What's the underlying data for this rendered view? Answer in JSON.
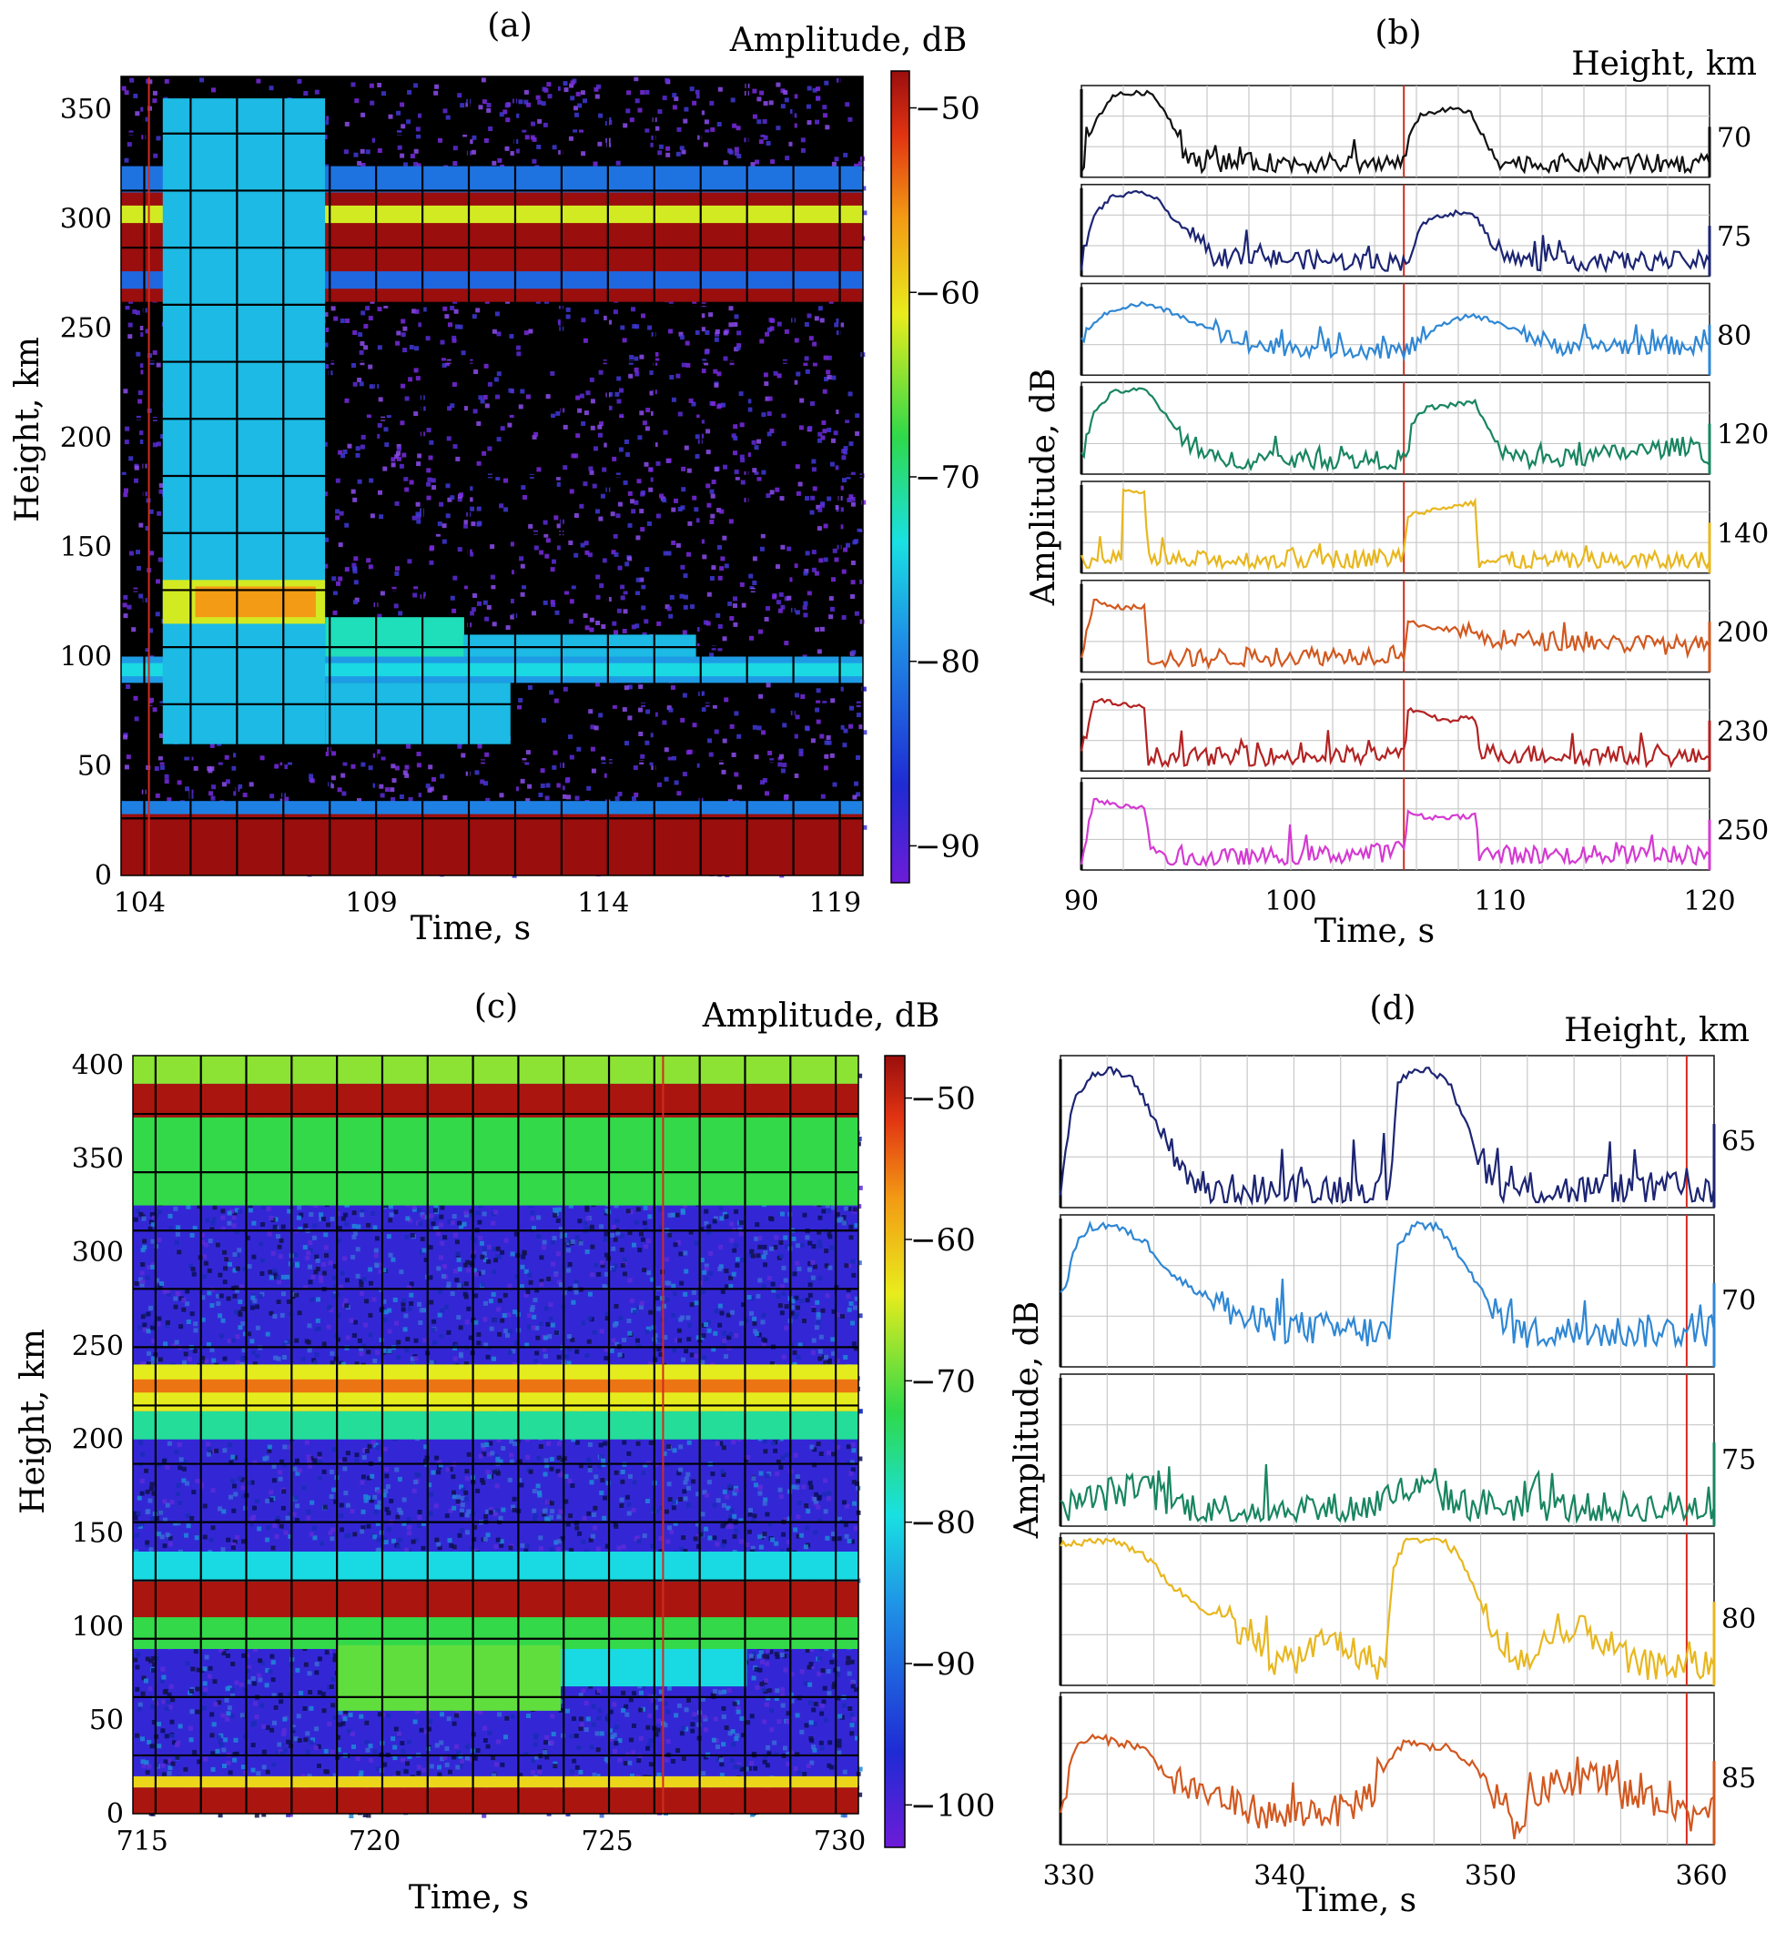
{
  "chart_data": [
    {
      "panel_label": "(a)",
      "type": "heatmap",
      "xlabel": "Time, s",
      "ylabel": "Height, km",
      "colorbar_label": "Amplitude, dB",
      "x_ticks": [
        104,
        109,
        114,
        119
      ],
      "y_ticks": [
        0,
        50,
        100,
        150,
        200,
        250,
        300,
        350
      ],
      "xlim": [
        103.6,
        119.6
      ],
      "ylim": [
        0,
        365
      ],
      "colorbar_ticks": [
        -50,
        -60,
        -70,
        -80,
        -90
      ],
      "colorbar_range": [
        -92,
        -48
      ],
      "background_db": -100,
      "bands": [
        {
          "x": [
            103.6,
            119.6
          ],
          "h": [
            0,
            30
          ],
          "db": -48
        },
        {
          "x": [
            103.6,
            119.6
          ],
          "h": [
            28,
            34
          ],
          "db": -80
        },
        {
          "x": [
            103.6,
            119.6
          ],
          "h": [
            88,
            100
          ],
          "db": -78
        },
        {
          "x": [
            103.6,
            119.6
          ],
          "h": [
            91,
            97
          ],
          "db": -74
        },
        {
          "x": [
            103.6,
            119.6
          ],
          "h": [
            262,
            322
          ],
          "db": -48
        },
        {
          "x": [
            103.6,
            119.6
          ],
          "h": [
            268,
            276
          ],
          "db": -82
        },
        {
          "x": [
            103.6,
            119.6
          ],
          "h": [
            298,
            306
          ],
          "db": -62
        },
        {
          "x": [
            103.6,
            119.6
          ],
          "h": [
            312,
            324
          ],
          "db": -81
        },
        {
          "x": [
            104.5,
            108.0
          ],
          "h": [
            60,
            355
          ],
          "db": -76
        },
        {
          "x": [
            104.5,
            108.0
          ],
          "h": [
            115,
            135
          ],
          "db": -62
        },
        {
          "x": [
            105.2,
            107.8
          ],
          "h": [
            118,
            132
          ],
          "db": -56
        },
        {
          "x": [
            108.0,
            111.0
          ],
          "h": [
            100,
            118
          ],
          "db": -72
        },
        {
          "x": [
            111.0,
            116.0
          ],
          "h": [
            100,
            110
          ],
          "db": -76
        },
        {
          "x": [
            108.0,
            112.0
          ],
          "h": [
            60,
            88
          ],
          "db": -76
        }
      ],
      "annotations": [
        {
          "type": "vline",
          "x": 104.2,
          "color": "#d32b1e"
        }
      ]
    },
    {
      "panel_label": "(b)",
      "type": "line",
      "xlabel": "Time, s",
      "ylabel": "Amplitude, dB",
      "series_label_title": "Height, km",
      "x_ticks": [
        90,
        100,
        110,
        120
      ],
      "xlim": [
        90,
        120
      ],
      "ylim": [
        0,
        1
      ],
      "marker_x": 105.4,
      "marker_color": "#d32b1e",
      "series": [
        {
          "name": "70",
          "color": "#111111",
          "x": [
            90,
            90.6,
            91.5,
            93,
            93.4,
            94,
            94.6,
            95.1,
            104.2,
            105.5,
            105.8,
            106.2,
            107,
            108,
            108.6,
            109.2,
            110,
            110.5,
            120
          ],
          "y": [
            0.05,
            0.6,
            0.95,
            0.98,
            0.95,
            0.75,
            0.45,
            0.12,
            0.1,
            0.1,
            0.55,
            0.7,
            0.75,
            0.78,
            0.72,
            0.4,
            0.15,
            0.1,
            0.1
          ]
        },
        {
          "name": "75",
          "color": "#1c2573",
          "x": [
            90,
            90.6,
            91.5,
            93,
            93.6,
            94.4,
            95.2,
            96.2,
            104.5,
            105.5,
            106.2,
            107,
            108,
            108.8,
            109.4,
            110.2,
            111,
            120
          ],
          "y": [
            0.1,
            0.7,
            0.92,
            0.97,
            0.88,
            0.65,
            0.45,
            0.18,
            0.1,
            0.12,
            0.55,
            0.68,
            0.72,
            0.68,
            0.45,
            0.18,
            0.12,
            0.12
          ]
        },
        {
          "name": "80",
          "color": "#2f87d4",
          "x": [
            90,
            90.6,
            91.6,
            93,
            94.2,
            95.4,
            96.8,
            98,
            104.8,
            105.4,
            106.2,
            107.2,
            108.6,
            110,
            111.4,
            112.6,
            120
          ],
          "y": [
            0.3,
            0.6,
            0.75,
            0.82,
            0.72,
            0.58,
            0.42,
            0.3,
            0.25,
            0.2,
            0.4,
            0.55,
            0.68,
            0.58,
            0.42,
            0.3,
            0.3
          ]
        },
        {
          "name": "120",
          "color": "#188560",
          "x": [
            90,
            90.6,
            91.5,
            93,
            93.5,
            94.3,
            95.2,
            96,
            104.5,
            105.5,
            105.9,
            106.5,
            108,
            108.8,
            109.4,
            110,
            111,
            113,
            116,
            119.5,
            120
          ],
          "y": [
            0.1,
            0.7,
            0.95,
            0.98,
            0.85,
            0.55,
            0.3,
            0.12,
            0.1,
            0.12,
            0.6,
            0.75,
            0.8,
            0.82,
            0.5,
            0.2,
            0.12,
            0.12,
            0.2,
            0.3,
            0.05
          ]
        },
        {
          "name": "140",
          "color": "#e8b71e",
          "x": [
            90,
            91.9,
            92,
            93,
            93.1,
            94,
            104.5,
            105.4,
            105.6,
            106.5,
            108.6,
            108.8,
            109,
            120
          ],
          "y": [
            0.08,
            0.08,
            0.95,
            0.95,
            0.1,
            0.08,
            0.12,
            0.15,
            0.65,
            0.7,
            0.8,
            0.8,
            0.08,
            0.08
          ]
        },
        {
          "name": "200",
          "color": "#d2581f",
          "x": [
            90,
            90.6,
            92,
            93,
            93.2,
            94,
            104.5,
            105.4,
            105.6,
            106.5,
            108.5,
            109,
            120
          ],
          "y": [
            0.1,
            0.82,
            0.72,
            0.75,
            0.12,
            0.1,
            0.15,
            0.2,
            0.55,
            0.5,
            0.42,
            0.35,
            0.25
          ]
        },
        {
          "name": "230",
          "color": "#b32222",
          "x": [
            90,
            90.6,
            92,
            93,
            93.2,
            94,
            104.5,
            105.4,
            105.6,
            106.5,
            107.5,
            108.5,
            108.8,
            109,
            120
          ],
          "y": [
            0.1,
            0.82,
            0.75,
            0.72,
            0.12,
            0.1,
            0.12,
            0.15,
            0.7,
            0.62,
            0.55,
            0.6,
            0.58,
            0.15,
            0.1
          ]
        },
        {
          "name": "250",
          "color": "#d43ad2",
          "x": [
            90,
            90.6,
            92,
            93,
            93.3,
            94,
            104.5,
            105.4,
            105.6,
            106.5,
            108.5,
            108.8,
            109,
            120
          ],
          "y": [
            0.1,
            0.8,
            0.72,
            0.72,
            0.12,
            0.05,
            0.15,
            0.2,
            0.65,
            0.58,
            0.6,
            0.62,
            0.12,
            0.12
          ]
        }
      ]
    },
    {
      "panel_label": "(c)",
      "type": "heatmap",
      "xlabel": "Time, s",
      "ylabel": "Height, km",
      "colorbar_label": "Amplitude, dB",
      "x_ticks": [
        715,
        720,
        725,
        730
      ],
      "y_ticks": [
        0,
        50,
        100,
        150,
        200,
        250,
        300,
        350,
        400
      ],
      "xlim": [
        714.8,
        730.4
      ],
      "ylim": [
        0,
        405
      ],
      "colorbar_ticks": [
        -50,
        -60,
        -70,
        -80,
        -90,
        -100
      ],
      "colorbar_range": [
        -103,
        -47
      ],
      "background_db": -98,
      "bands": [
        {
          "x": [
            714.8,
            730.4
          ],
          "h": [
            0,
            14
          ],
          "db": -48
        },
        {
          "x": [
            714.8,
            730.4
          ],
          "h": [
            14,
            20
          ],
          "db": -62
        },
        {
          "x": [
            714.8,
            730.4
          ],
          "h": [
            88,
            105
          ],
          "db": -72
        },
        {
          "x": [
            714.8,
            730.4
          ],
          "h": [
            105,
            124
          ],
          "db": -48
        },
        {
          "x": [
            714.8,
            730.4
          ],
          "h": [
            124,
            140
          ],
          "db": -80
        },
        {
          "x": [
            714.8,
            730.4
          ],
          "h": [
            200,
            215
          ],
          "db": -76
        },
        {
          "x": [
            714.8,
            730.4
          ],
          "h": [
            215,
            240
          ],
          "db": -64
        },
        {
          "x": [
            714.8,
            730.4
          ],
          "h": [
            225,
            232
          ],
          "db": -55
        },
        {
          "x": [
            714.8,
            730.4
          ],
          "h": [
            325,
            372
          ],
          "db": -72
        },
        {
          "x": [
            714.8,
            730.4
          ],
          "h": [
            372,
            390
          ],
          "db": -48
        },
        {
          "x": [
            714.8,
            730.4
          ],
          "h": [
            390,
            405
          ],
          "db": -68
        },
        {
          "x": [
            719.2,
            724.0
          ],
          "h": [
            55,
            90
          ],
          "db": -70
        },
        {
          "x": [
            724.0,
            728.0
          ],
          "h": [
            68,
            88
          ],
          "db": -80
        }
      ],
      "annotations": [
        {
          "type": "vline",
          "x": 726.2,
          "color": "#d32b1e"
        }
      ]
    },
    {
      "panel_label": "(d)",
      "type": "line",
      "xlabel": "Time, s",
      "ylabel": "Amplitude, dB",
      "series_label_title": "Height, km",
      "x_ticks": [
        330,
        340,
        350,
        360
      ],
      "xlim": [
        329.6,
        360.6
      ],
      "ylim": [
        0,
        1
      ],
      "marker_x": 359.3,
      "marker_color": "#d32b1e",
      "series": [
        {
          "name": "65",
          "color": "#1c2573",
          "x": [
            329.6,
            330.2,
            331,
            332,
            333,
            334,
            335,
            336,
            336.6,
            337.5,
            345.2,
            345.6,
            346.4,
            347.2,
            348,
            349,
            349.8,
            350.6,
            351.5,
            360.6
          ],
          "y": [
            0.1,
            0.72,
            0.9,
            0.93,
            0.88,
            0.6,
            0.3,
            0.15,
            0.08,
            0.08,
            0.1,
            0.85,
            0.95,
            0.92,
            0.86,
            0.5,
            0.25,
            0.08,
            0.08,
            0.1
          ]
        },
        {
          "name": "70",
          "color": "#2f87d4",
          "x": [
            329.6,
            330.2,
            331,
            332,
            333.6,
            335,
            337,
            338.6,
            340,
            345.2,
            345.6,
            346.4,
            347.4,
            348.6,
            349.6,
            350.6,
            351.6,
            360.6
          ],
          "y": [
            0.3,
            0.8,
            0.95,
            0.97,
            0.85,
            0.6,
            0.42,
            0.28,
            0.25,
            0.2,
            0.8,
            0.98,
            0.95,
            0.75,
            0.5,
            0.28,
            0.2,
            0.22
          ]
        },
        {
          "name": "75",
          "color": "#188560",
          "x": [
            329.6,
            330.5,
            332,
            333.5,
            335,
            336.5,
            343.5,
            344.5,
            345.5,
            346.5,
            347.5,
            348.5,
            355,
            360.6
          ],
          "y": [
            0.1,
            0.12,
            0.2,
            0.22,
            0.12,
            0.08,
            0.08,
            0.12,
            0.2,
            0.22,
            0.2,
            0.12,
            0.08,
            0.1
          ]
        },
        {
          "name": "80",
          "color": "#e8b71e",
          "x": [
            329.6,
            332,
            333.5,
            335,
            337,
            338.5,
            340,
            342.5,
            344,
            345,
            345.4,
            346,
            347.6,
            348.4,
            349.4,
            350.3,
            350.9,
            352,
            353.6,
            354.6,
            355.6,
            356.8,
            360.6
          ],
          "y": [
            0.95,
            1.0,
            0.9,
            0.65,
            0.45,
            0.35,
            0.1,
            0.3,
            0.15,
            0.1,
            0.8,
            1.0,
            1.0,
            0.9,
            0.6,
            0.25,
            0.15,
            0.15,
            0.3,
            0.35,
            0.25,
            0.1,
            0.1
          ]
        },
        {
          "name": "85",
          "color": "#d2581f",
          "x": [
            329.6,
            330.3,
            331,
            332,
            333.5,
            335,
            337,
            338.5,
            340,
            341.5,
            343,
            344.5,
            345.2,
            346,
            347,
            348,
            349,
            350.3,
            351,
            352,
            353.5,
            354.5,
            356,
            357.5,
            358.5,
            359.5,
            360.6
          ],
          "y": [
            0.25,
            0.65,
            0.72,
            0.7,
            0.65,
            0.4,
            0.3,
            0.22,
            0.15,
            0.2,
            0.2,
            0.35,
            0.55,
            0.7,
            0.65,
            0.65,
            0.55,
            0.3,
            0.05,
            0.3,
            0.4,
            0.45,
            0.35,
            0.25,
            0.3,
            0.15,
            0.3
          ]
        }
      ]
    }
  ]
}
